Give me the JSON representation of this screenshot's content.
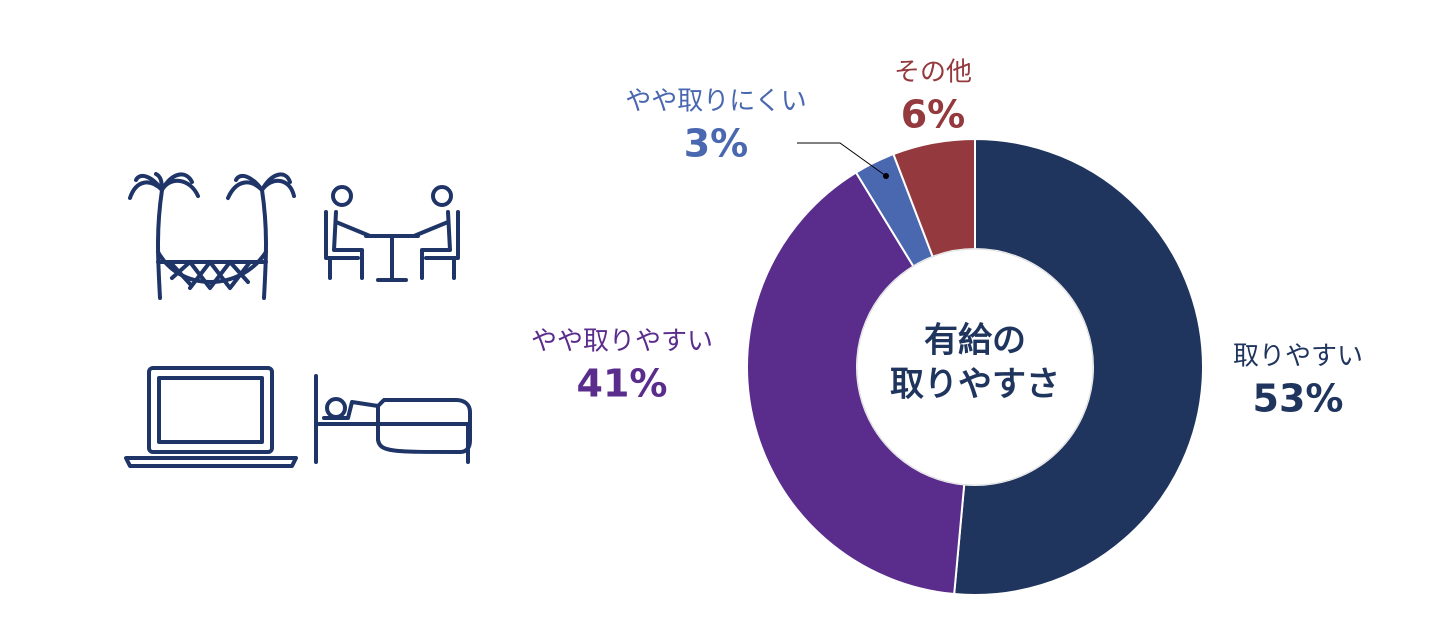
{
  "chart_data": {
    "type": "pie",
    "center_label": [
      "有給の",
      "取りやすさ"
    ],
    "categories": [
      "取りやすい",
      "やや取りやすい",
      "やや取りにくい",
      "その他"
    ],
    "values": [
      53,
      41,
      3,
      6
    ],
    "value_labels": [
      "53%",
      "41%",
      "3%",
      "6%"
    ],
    "colors": [
      "#1f355e",
      "#5a2d8c",
      "#4a68b0",
      "#943a3e"
    ],
    "donut": true
  }
}
